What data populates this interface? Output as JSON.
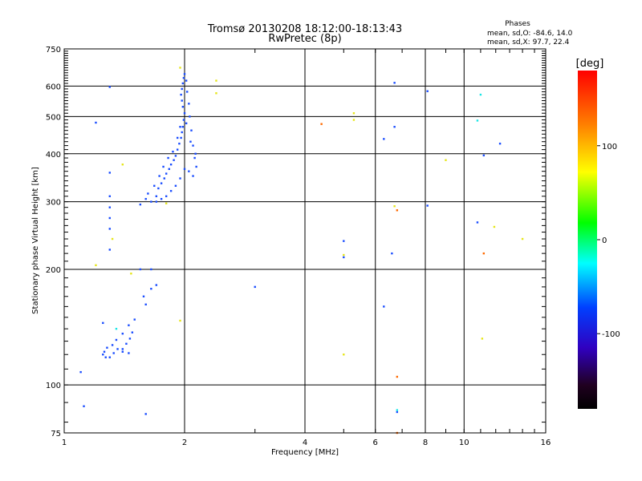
{
  "chart_data": {
    "type": "scatter",
    "title": "Tromsø 20130208 18:12:00-18:13:43",
    "subtitle": "RwPretec (8p)",
    "xlabel": "Frequency [MHz]",
    "ylabel": "Stationary phase Virtual Height [km]",
    "xscale": "log",
    "yscale": "log",
    "xlim": [
      1,
      16
    ],
    "ylim": [
      75,
      750
    ],
    "x_ticks": [
      1,
      2,
      4,
      6,
      8,
      10,
      16
    ],
    "y_ticks": [
      75,
      100,
      200,
      300,
      400,
      500,
      600,
      750
    ],
    "grid": true,
    "phase_info": {
      "title": "Phases",
      "o_line": "mean, sd,O: -84.6, 14.0",
      "x_line": "mean, sd,X:  97.7, 22.4"
    },
    "colorbar": {
      "label": "[deg]",
      "ticks": [
        100,
        0,
        -100
      ],
      "range": [
        -180,
        180
      ]
    },
    "series": [
      {
        "color": "#1a4dff",
        "points": [
          [
            1.3,
            597
          ],
          [
            1.2,
            482
          ],
          [
            1.3,
            357
          ],
          [
            1.3,
            310
          ],
          [
            1.3,
            290
          ],
          [
            1.3,
            272
          ],
          [
            1.3,
            255
          ],
          [
            1.3,
            225
          ],
          [
            1.55,
            200
          ],
          [
            1.65,
            200
          ],
          [
            1.7,
            182
          ],
          [
            1.65,
            178
          ],
          [
            1.58,
            170
          ],
          [
            1.6,
            162
          ],
          [
            1.5,
            148
          ],
          [
            1.45,
            143
          ],
          [
            1.4,
            136
          ],
          [
            1.35,
            131
          ],
          [
            1.32,
            127
          ],
          [
            1.28,
            125
          ],
          [
            1.26,
            122
          ],
          [
            1.25,
            120
          ],
          [
            1.27,
            118
          ],
          [
            1.3,
            118
          ],
          [
            1.33,
            121
          ],
          [
            1.36,
            124
          ],
          [
            1.4,
            124
          ],
          [
            1.43,
            128
          ],
          [
            1.46,
            132
          ],
          [
            1.48,
            137
          ],
          [
            1.25,
            145
          ],
          [
            1.4,
            122
          ],
          [
            1.45,
            121
          ],
          [
            1.1,
            108
          ],
          [
            1.12,
            88
          ],
          [
            1.6,
            84
          ],
          [
            1.55,
            295
          ],
          [
            1.6,
            305
          ],
          [
            1.62,
            315
          ],
          [
            1.65,
            300
          ],
          [
            1.7,
            310
          ],
          [
            1.72,
            325
          ],
          [
            1.75,
            335
          ],
          [
            1.78,
            345
          ],
          [
            1.8,
            355
          ],
          [
            1.83,
            365
          ],
          [
            1.85,
            375
          ],
          [
            1.88,
            385
          ],
          [
            1.9,
            395
          ],
          [
            1.92,
            410
          ],
          [
            1.94,
            425
          ],
          [
            1.96,
            440
          ],
          [
            1.97,
            455
          ],
          [
            1.98,
            470
          ],
          [
            1.99,
            490
          ],
          [
            2.0,
            510
          ],
          [
            1.98,
            530
          ],
          [
            1.97,
            550
          ],
          [
            1.96,
            570
          ],
          [
            1.97,
            590
          ],
          [
            1.98,
            610
          ],
          [
            1.99,
            630
          ],
          [
            2.0,
            645
          ],
          [
            2.02,
            620
          ],
          [
            2.03,
            580
          ],
          [
            2.05,
            540
          ],
          [
            2.06,
            500
          ],
          [
            2.08,
            460
          ],
          [
            2.1,
            420
          ],
          [
            2.12,
            390
          ],
          [
            2.14,
            370
          ],
          [
            2.1,
            350
          ],
          [
            2.05,
            360
          ],
          [
            2.0,
            365
          ],
          [
            1.95,
            345
          ],
          [
            1.9,
            330
          ],
          [
            1.85,
            320
          ],
          [
            1.8,
            310
          ],
          [
            1.75,
            305
          ],
          [
            1.7,
            300
          ],
          [
            1.68,
            330
          ],
          [
            1.73,
            350
          ],
          [
            1.77,
            370
          ],
          [
            1.82,
            390
          ],
          [
            1.87,
            405
          ],
          [
            1.92,
            440
          ],
          [
            1.95,
            470
          ],
          [
            2.02,
            480
          ],
          [
            2.07,
            430
          ],
          [
            2.13,
            400
          ],
          [
            3.0,
            180
          ],
          [
            5.0,
            237
          ],
          [
            5.0,
            215
          ],
          [
            6.3,
            160
          ],
          [
            6.6,
            220
          ],
          [
            6.8,
            85
          ],
          [
            6.3,
            437
          ],
          [
            6.7,
            470
          ],
          [
            6.7,
            612
          ],
          [
            8.1,
            582
          ],
          [
            8.1,
            293
          ],
          [
            10.8,
            265
          ],
          [
            11.2,
            396
          ],
          [
            12.3,
            425
          ]
        ]
      },
      {
        "color": "#19e6e6",
        "points": [
          [
            6.8,
            86
          ],
          [
            10.8,
            488
          ],
          [
            11.0,
            570
          ],
          [
            1.35,
            140
          ]
        ]
      },
      {
        "color": "#e6e619",
        "points": [
          [
            1.2,
            205
          ],
          [
            1.4,
            375
          ],
          [
            1.32,
            240
          ],
          [
            1.47,
            195
          ],
          [
            1.8,
            297
          ],
          [
            1.95,
            670
          ],
          [
            2.4,
            620
          ],
          [
            2.4,
            575
          ],
          [
            5.3,
            510
          ],
          [
            5.3,
            490
          ],
          [
            5.0,
            218
          ],
          [
            5.0,
            120
          ],
          [
            6.7,
            292
          ],
          [
            9.0,
            385
          ],
          [
            11.1,
            132
          ],
          [
            11.9,
            258
          ],
          [
            14.0,
            240
          ],
          [
            1.95,
            147
          ]
        ]
      },
      {
        "color": "#ff6a00",
        "points": [
          [
            4.4,
            478
          ],
          [
            6.8,
            285
          ],
          [
            6.8,
            105
          ],
          [
            6.8,
            75
          ],
          [
            11.2,
            220
          ]
        ]
      }
    ]
  }
}
